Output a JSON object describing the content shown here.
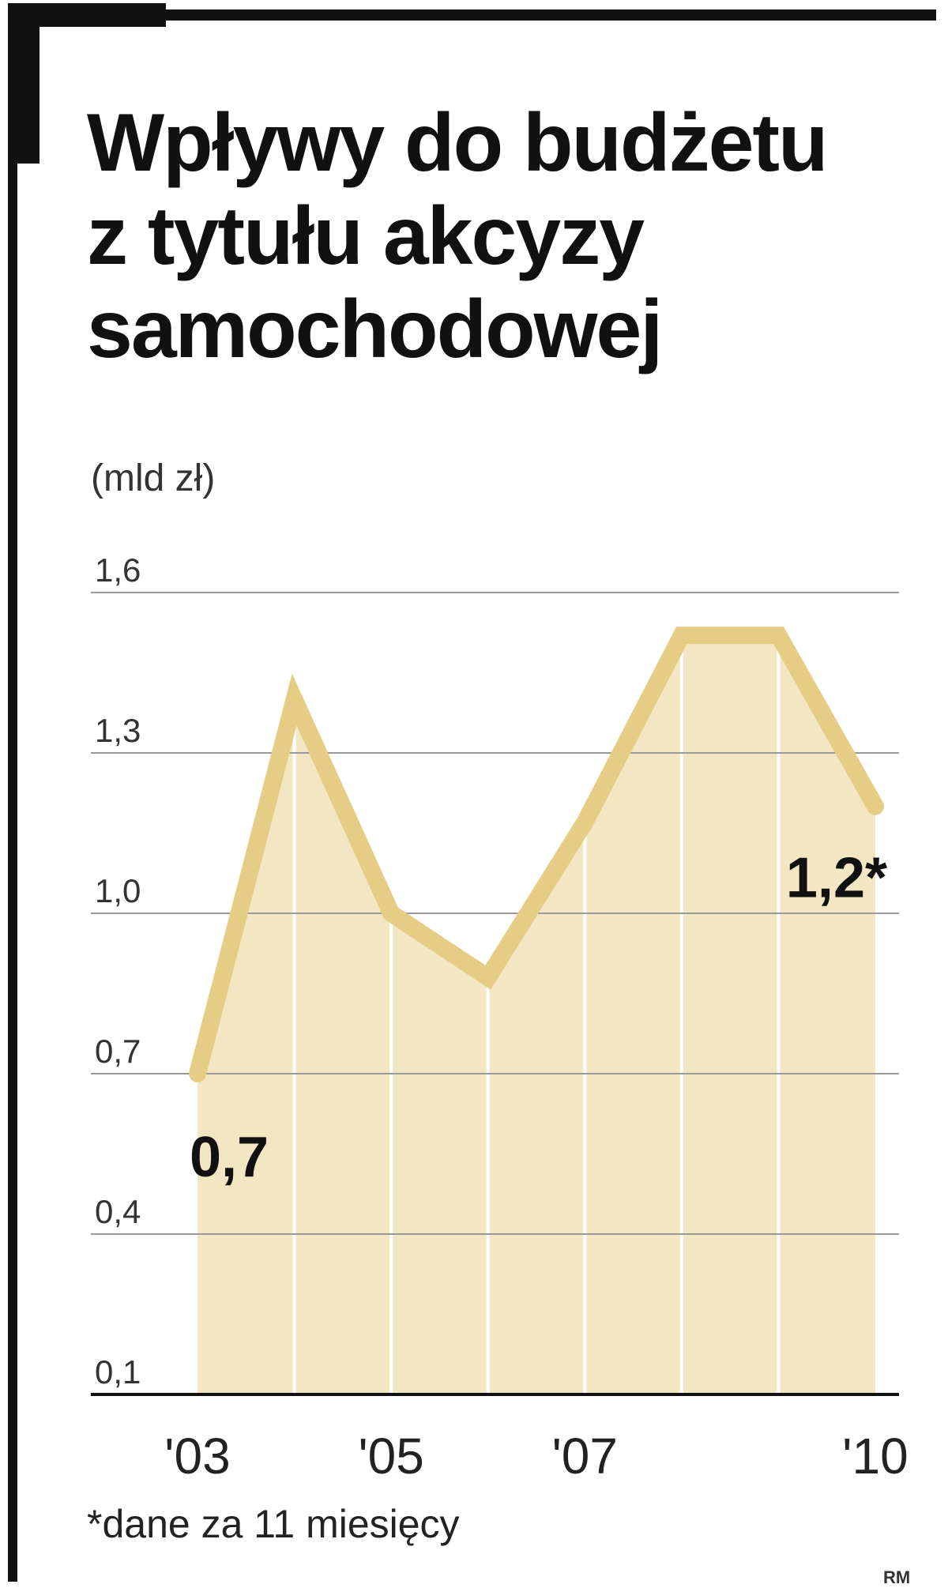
{
  "title_lines": [
    "Wpływy do budżetu",
    "z tytułu akcyzy",
    "samochodowej"
  ],
  "unit": "(mld zł)",
  "footnote": "*dane za 11 miesięcy",
  "credit": "RM",
  "colors": {
    "line": "#e6cd86",
    "fill": "#f3e6c3",
    "grid": "#9a9a9a",
    "text": "#1a1a1a",
    "frame": "#111111"
  },
  "chart_data": {
    "type": "area",
    "title": "Wpływy do budżetu z tytułu akcyzy samochodowej",
    "ylabel": "(mld zł)",
    "x": [
      2003,
      2004,
      2005,
      2006,
      2007,
      2008,
      2009,
      2010
    ],
    "values": [
      0.7,
      1.4,
      1.0,
      0.88,
      1.17,
      1.52,
      1.52,
      1.2
    ],
    "ylim": [
      0.1,
      1.6
    ],
    "yticks": [
      1.6,
      1.3,
      1.0,
      0.7,
      0.4,
      0.1
    ],
    "ytick_labels": [
      "1,6",
      "1,3",
      "1,0",
      "0,7",
      "0,4",
      "0,1"
    ],
    "xtick_values": [
      2003,
      2005,
      2007,
      2010
    ],
    "xtick_labels": [
      "'03",
      "'05",
      "'07",
      "'10"
    ],
    "annotations": [
      {
        "x": 2003,
        "y": 0.7,
        "text": "0,7"
      },
      {
        "x": 2010,
        "y": 1.2,
        "text": "1,2*"
      }
    ],
    "grid": true,
    "legend": "none"
  }
}
